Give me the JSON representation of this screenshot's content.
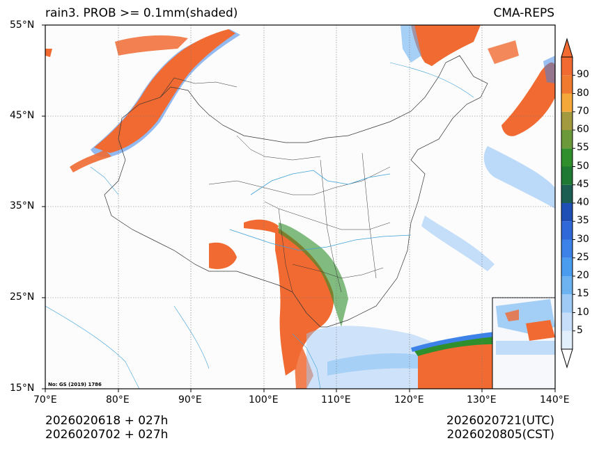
{
  "map": {
    "title": "rain3. PROB >= 0.1mm(shaded)",
    "source": "CMA-REPS",
    "credit": "No: GS (2019) 1786",
    "init_time_utc_line": "2026020618  +  027h",
    "init_time_cst_line": "2026020702  +  027h",
    "valid_time_utc": "2026020721(UTC)",
    "valid_time_cst": "2026020805(CST)",
    "lat_labels": [
      "55°N",
      "45°N",
      "35°N",
      "25°N",
      "15°N"
    ],
    "lon_labels": [
      "70°E",
      "80°E",
      "90°E",
      "100°E",
      "110°E",
      "120°E",
      "130°E",
      "140°E"
    ],
    "extent": {
      "lon_min": 70,
      "lon_max": 140,
      "lat_min": 15,
      "lat_max": 55
    }
  },
  "colorbar": {
    "levels": [
      "5",
      "10",
      "15",
      "20",
      "25",
      "30",
      "35",
      "40",
      "45",
      "50",
      "55",
      "60",
      "70",
      "80",
      "90"
    ],
    "colors": [
      "#e1eefb",
      "#c6defa",
      "#9fcaf6",
      "#6db3f2",
      "#4a9cee",
      "#3c82e8",
      "#2f68d8",
      "#1f4fb4",
      "#1c5e52",
      "#1e7a32",
      "#2f8f2c",
      "#6c9a3a",
      "#a39a40",
      "#f4a83a",
      "#f07a30",
      "#f06a32"
    ]
  },
  "colors": {
    "high": "#f06a32",
    "mid_blue": "#3c82e8",
    "light_blue": "#9fcaf6",
    "green": "#2f8f2c",
    "river": "#3aa0d8",
    "border": "#333333",
    "grid": "#777777"
  }
}
